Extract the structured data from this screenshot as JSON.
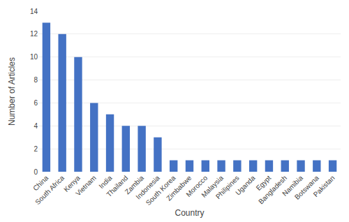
{
  "chart_data": {
    "type": "bar",
    "categories": [
      "China",
      "South Africa",
      "Kenya",
      "Vietnam",
      "India",
      "Thailand",
      "Zambia",
      "Indonesia",
      "South Korea",
      "Zimbabwe",
      "Morocco",
      "Malaysia",
      "Philipines",
      "Uganda",
      "Egypt",
      "Bangladesh",
      "Namibia",
      "Botswana",
      "Pakistan"
    ],
    "values": [
      13,
      12,
      10,
      6,
      5,
      4,
      4,
      3,
      1,
      1,
      1,
      1,
      1,
      1,
      1,
      1,
      1,
      1,
      1
    ],
    "color": "#4472C4",
    "xlabel": "Country",
    "ylabel": "Number of Articles",
    "ylim": [
      0,
      14
    ],
    "yticks": [
      0,
      2,
      4,
      6,
      8,
      10,
      12,
      14
    ],
    "grid": true
  }
}
